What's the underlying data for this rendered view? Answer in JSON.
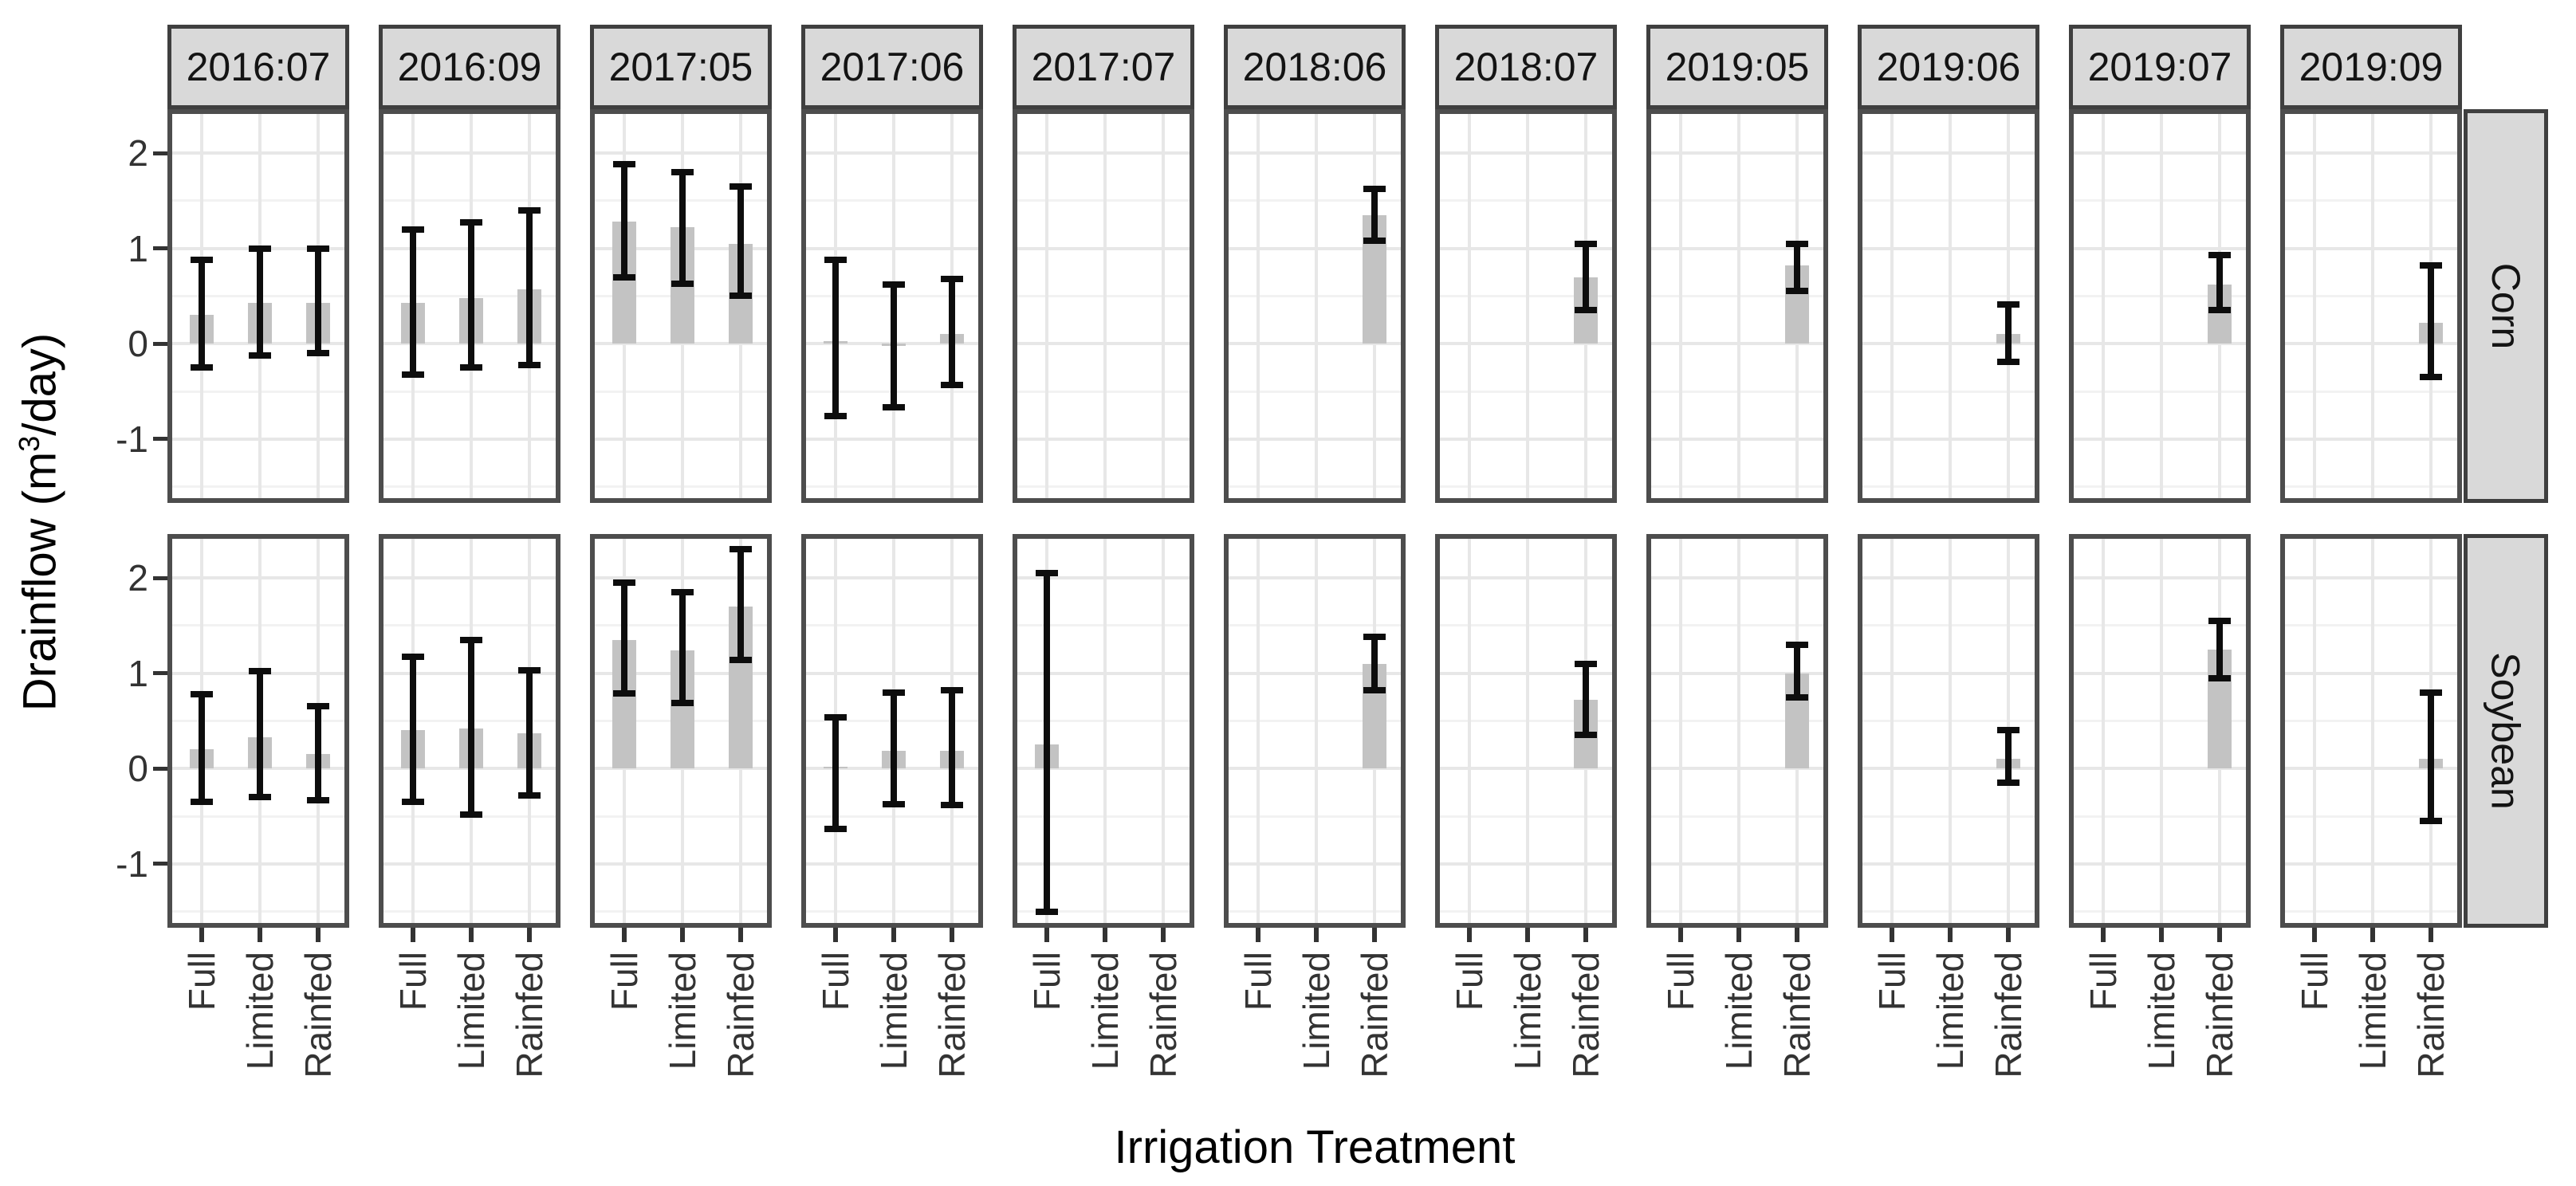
{
  "figure": {
    "x_axis_title": "Irrigation Treatment",
    "y_axis_title_prefix": "Drainflow  (m",
    "y_axis_title_sup": "3",
    "y_axis_title_suffix": "/day)"
  },
  "chart_data": {
    "type": "bar",
    "title": "",
    "xlabel": "Irrigation Treatment",
    "ylabel": "Drainflow (m3/day)",
    "legend": "none",
    "grid": true,
    "ylim": [
      -1.67,
      2.46
    ],
    "y_major_ticks": [
      2,
      1,
      0,
      -1
    ],
    "y_minor_gridlines": [
      1.5,
      0.5,
      -0.5,
      -1.5
    ],
    "categories": [
      "Full",
      "Limited",
      "Rainfed"
    ],
    "facet_columns": [
      "2016:07",
      "2016:09",
      "2017:05",
      "2017:06",
      "2017:07",
      "2018:06",
      "2018:07",
      "2019:05",
      "2019:06",
      "2019:07",
      "2019:09"
    ],
    "facet_rows": [
      "Corn",
      "Soybean"
    ],
    "bar_color": "#c3c3c3",
    "errorbar_color": "#0d0d0d",
    "strip_fill": "#d9d9d9",
    "panel_border_color": "#4d4d4d",
    "values": {
      "Corn": [
        [
          [
            0.3,
            -0.25,
            0.88
          ],
          [
            0.43,
            -0.12,
            1.0
          ],
          [
            0.43,
            -0.1,
            1.0
          ]
        ],
        [
          [
            0.43,
            -0.32,
            1.2
          ],
          [
            0.48,
            -0.25,
            1.27
          ],
          [
            0.57,
            -0.22,
            1.4
          ]
        ],
        [
          [
            1.28,
            0.7,
            1.88
          ],
          [
            1.22,
            0.63,
            1.8
          ],
          [
            1.05,
            0.5,
            1.65
          ]
        ],
        [
          [
            0.03,
            -0.76,
            0.88
          ],
          [
            -0.02,
            -0.67,
            0.62
          ],
          [
            0.1,
            -0.43,
            0.68
          ]
        ],
        [
          null,
          null,
          null
        ],
        [
          null,
          null,
          [
            1.35,
            1.08,
            1.62
          ]
        ],
        [
          null,
          null,
          [
            0.7,
            0.35,
            1.05
          ]
        ],
        [
          null,
          null,
          [
            0.82,
            0.55,
            1.05
          ]
        ],
        [
          null,
          null,
          [
            0.1,
            -0.19,
            0.41
          ]
        ],
        [
          null,
          null,
          [
            0.62,
            0.35,
            0.93
          ]
        ],
        [
          null,
          null,
          [
            0.22,
            -0.35,
            0.82
          ]
        ]
      ],
      "Soybean": [
        [
          [
            0.2,
            -0.35,
            0.78
          ],
          [
            0.33,
            -0.3,
            1.02
          ],
          [
            0.15,
            -0.33,
            0.65
          ]
        ],
        [
          [
            0.4,
            -0.35,
            1.17
          ],
          [
            0.42,
            -0.48,
            1.35
          ],
          [
            0.37,
            -0.28,
            1.03
          ]
        ],
        [
          [
            1.35,
            0.79,
            1.95
          ],
          [
            1.24,
            0.69,
            1.85
          ],
          [
            1.7,
            1.14,
            2.3
          ]
        ],
        [
          [
            0.02,
            -0.63,
            0.54
          ],
          [
            0.19,
            -0.37,
            0.8
          ],
          [
            0.19,
            -0.38,
            0.82
          ]
        ],
        [
          [
            0.25,
            -1.5,
            2.05
          ],
          null,
          null
        ],
        [
          null,
          null,
          [
            1.1,
            0.82,
            1.38
          ]
        ],
        [
          null,
          null,
          [
            0.72,
            0.35,
            1.1
          ]
        ],
        [
          null,
          null,
          [
            1.0,
            0.75,
            1.3
          ]
        ],
        [
          null,
          null,
          [
            0.1,
            -0.15,
            0.4
          ]
        ],
        [
          null,
          null,
          [
            1.25,
            0.95,
            1.55
          ]
        ],
        [
          null,
          null,
          [
            0.1,
            -0.55,
            0.8
          ]
        ]
      ]
    }
  }
}
